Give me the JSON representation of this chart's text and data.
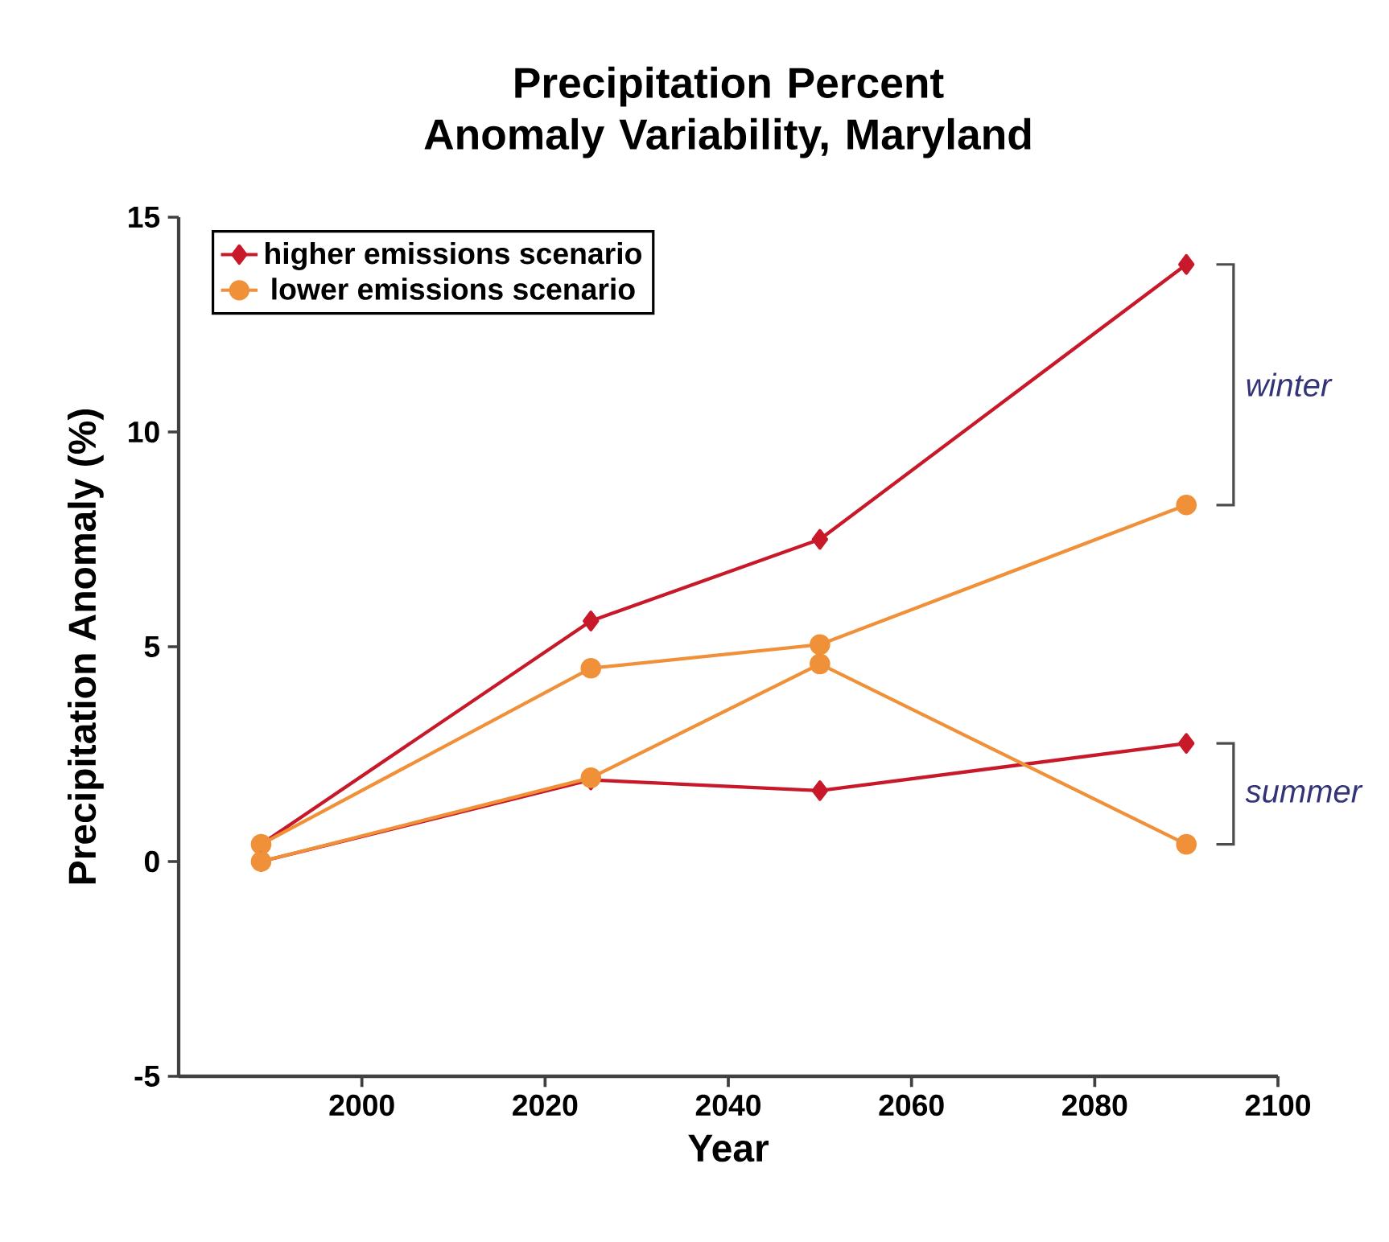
{
  "chart_data": {
    "type": "line",
    "title": "Precipitation Percent Anomaly Variability, Maryland",
    "xlabel": "Year",
    "ylabel": "Precipitation Anomaly (%)",
    "x": [
      1989,
      2025,
      2050,
      2090
    ],
    "series": [
      {
        "name": "higher emissions scenario",
        "color": "#c8192a",
        "marker": "diamond",
        "values": [
          0.4,
          5.6,
          7.5,
          13.9
        ]
      },
      {
        "name": "lower emissions scenario",
        "color": "#f0913a",
        "marker": "circle",
        "values": [
          0.4,
          4.5,
          5.05,
          8.3
        ]
      },
      {
        "color": "#c8192a",
        "marker": "diamond",
        "values": [
          0.0,
          1.9,
          1.65,
          2.75
        ]
      },
      {
        "color": "#f0913a",
        "marker": "circle",
        "values": [
          0.0,
          1.95,
          4.6,
          0.4
        ]
      }
    ],
    "xlim": [
      1980,
      2100
    ],
    "ylim": [
      -5,
      15
    ],
    "xticks": [
      2000,
      2020,
      2040,
      2060,
      2080,
      2100
    ],
    "yticks": [
      -5,
      0,
      5,
      10,
      15
    ],
    "legend": "top left",
    "grid": false,
    "annotations": [
      "winter",
      "summer"
    ]
  }
}
